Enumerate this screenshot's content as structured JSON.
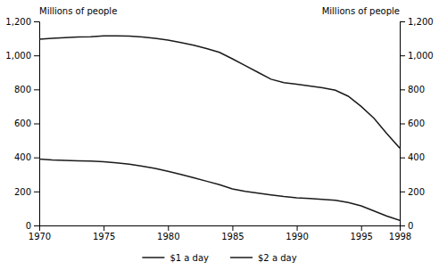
{
  "chart_data": {
    "type": "line",
    "ylabel": "Millions of people",
    "y2label": "Millions of people",
    "x": [
      1970,
      1971,
      1972,
      1973,
      1974,
      1975,
      1976,
      1977,
      1978,
      1979,
      1980,
      1981,
      1982,
      1983,
      1984,
      1985,
      1986,
      1987,
      1988,
      1989,
      1990,
      1991,
      1992,
      1993,
      1994,
      1995,
      1996,
      1997,
      1998
    ],
    "series": [
      {
        "name": "$1 a day",
        "color": "#1a1a1a",
        "values": [
          390,
          385,
          383,
          380,
          378,
          375,
          368,
          360,
          348,
          335,
          318,
          300,
          280,
          260,
          240,
          215,
          200,
          190,
          180,
          170,
          163,
          158,
          153,
          148,
          135,
          115,
          85,
          55,
          30
        ]
      },
      {
        "name": "$2 a day",
        "color": "#1a1a1a",
        "values": [
          1095,
          1100,
          1105,
          1108,
          1110,
          1115,
          1115,
          1113,
          1108,
          1100,
          1090,
          1075,
          1060,
          1040,
          1018,
          980,
          940,
          900,
          860,
          840,
          830,
          820,
          810,
          795,
          760,
          700,
          630,
          540,
          455
        ]
      }
    ],
    "xlim": [
      1970,
      1998
    ],
    "xticks": [
      1970,
      1975,
      1980,
      1985,
      1990,
      1995,
      1998
    ],
    "ylim": [
      0,
      1200
    ],
    "yticks": [
      0,
      200,
      400,
      600,
      800,
      {
        "value": 1000,
        "label": "1,000"
      },
      {
        "value": 1200,
        "label": "1,200"
      }
    ],
    "y2lim": [
      0,
      1200
    ],
    "y2ticks": [
      0,
      200,
      400,
      600,
      800,
      {
        "value": 1000,
        "label": "1,000"
      },
      {
        "value": 1200,
        "label": "1,200"
      }
    ],
    "grid": false,
    "legend": "bottom"
  }
}
